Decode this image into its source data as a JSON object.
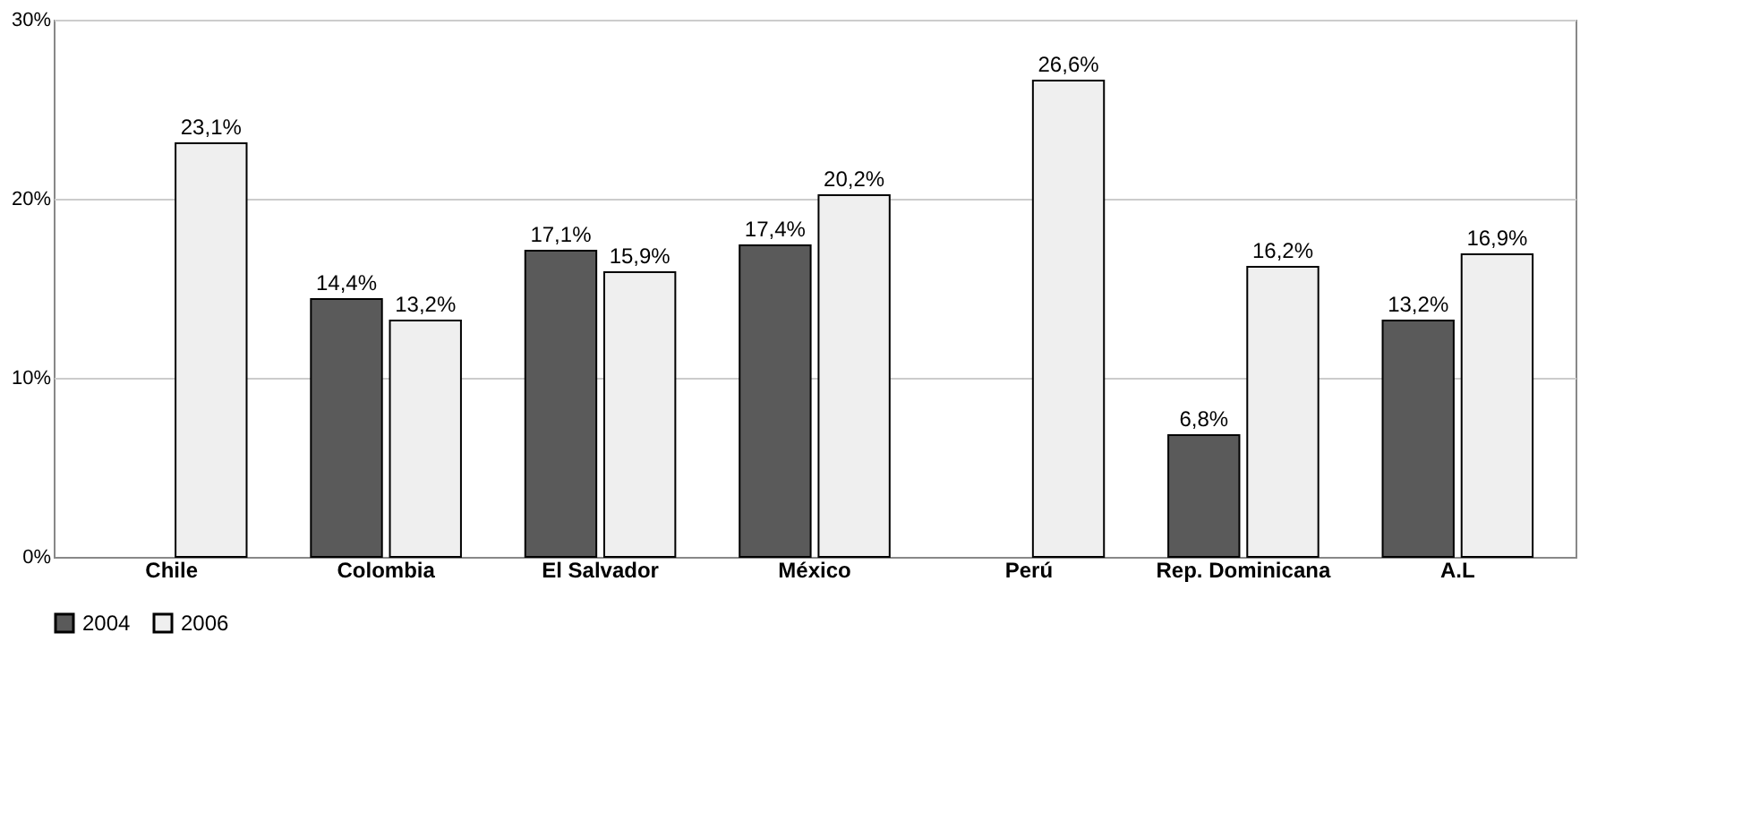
{
  "chart_data": {
    "type": "bar",
    "categories": [
      "Chile",
      "Colombia",
      "El Salvador",
      "México",
      "Perú",
      "Rep. Dominicana",
      "A.L"
    ],
    "series": [
      {
        "name": "2004",
        "color": "#5a5a5a",
        "values": [
          null,
          14.4,
          17.1,
          17.4,
          null,
          6.8,
          13.2
        ],
        "value_labels": [
          null,
          "14,4%",
          "17,1%",
          "17,4%",
          null,
          "6,8%",
          "13,2%"
        ]
      },
      {
        "name": "2006",
        "color": "#efefef",
        "values": [
          23.1,
          13.2,
          15.9,
          20.2,
          26.6,
          16.2,
          16.9
        ],
        "value_labels": [
          "23,1%",
          "13,2%",
          "15,9%",
          "20,2%",
          "26,6%",
          "16,2%",
          "16,9%"
        ]
      }
    ],
    "ylim": [
      0,
      30
    ],
    "yticks": [
      {
        "value": 0,
        "label": "0%"
      },
      {
        "value": 10,
        "label": "10%"
      },
      {
        "value": 20,
        "label": "20%"
      },
      {
        "value": 30,
        "label": "30%"
      }
    ],
    "grid": "y",
    "legend": "bottom"
  }
}
